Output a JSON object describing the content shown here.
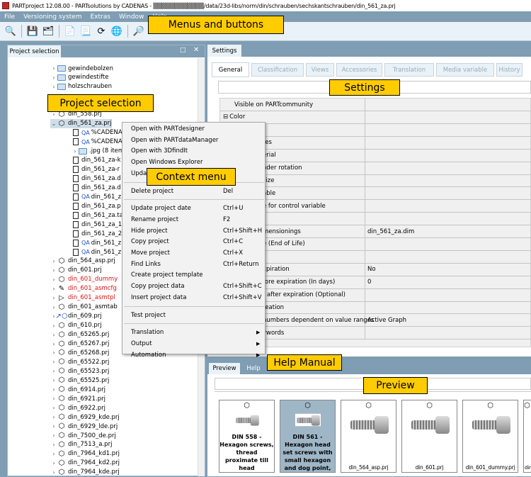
{
  "title": "PARTproject 12.08.00 - PARTsolutions by CADENAS - ▒▒▒▒▒▒▒▒▒▒▒▒/data/23d-libs/norm/din/schrauben/sechskantschrauben/din_561_za.prj",
  "menu": [
    "File",
    "Versioning system",
    "Extras",
    "Window",
    "Help"
  ],
  "toolbar_icons": [
    "search-text-icon",
    "save-icon",
    "save-all-icon",
    "export-icon",
    "export-alt-icon",
    "update-icon",
    "globe-icon",
    "search-red-icon"
  ],
  "callouts": {
    "menus": "Menus and buttons",
    "project": "Project selection",
    "settings": "Settings",
    "context": "Context menu",
    "help": "Help Manual",
    "preview": "Preview"
  },
  "left_panel": {
    "tab": "Project selection"
  },
  "tree": [
    {
      "label": "gewindebolzen",
      "type": "folder",
      "indent": 1
    },
    {
      "label": "gewindestifte",
      "type": "folder",
      "indent": 1
    },
    {
      "label": "holzschrauben",
      "type": "folder",
      "indent": 1
    },
    {
      "label": "",
      "type": "none",
      "indent": 1
    },
    {
      "label": "",
      "type": "none",
      "indent": 1
    },
    {
      "label": "din_558.prj",
      "type": "prj",
      "indent": 1
    },
    {
      "label": "din_561_za.prj",
      "type": "prj",
      "indent": 1,
      "expanded": true,
      "selected": true
    },
    {
      "label": "%CADENA",
      "type": "qa",
      "indent": 2
    },
    {
      "label": "%CADENA",
      "type": "qa",
      "indent": 2
    },
    {
      "label": ".jpg (8 items)",
      "type": "folder",
      "indent": 2,
      "chev": true
    },
    {
      "label": "din_561_za-k",
      "type": "doc",
      "indent": 2
    },
    {
      "label": "din_561_za-r",
      "type": "doc",
      "indent": 2
    },
    {
      "label": "din_561_za.d",
      "type": "doc",
      "indent": 2
    },
    {
      "label": "din_561_za.d",
      "type": "doc",
      "indent": 2
    },
    {
      "label": "din_561_z",
      "type": "qa",
      "indent": 2
    },
    {
      "label": "din_561_za.p",
      "type": "doc",
      "indent": 2
    },
    {
      "label": "din_561_za.ta",
      "type": "doc",
      "indent": 2
    },
    {
      "label": "din_561_za_1",
      "type": "doc",
      "indent": 2
    },
    {
      "label": "din_561_za_2",
      "type": "doc",
      "indent": 2
    },
    {
      "label": "din_561_z",
      "type": "qa",
      "indent": 2
    },
    {
      "label": "din_561_z",
      "type": "qa",
      "indent": 2
    },
    {
      "label": "din_564_asp.prj",
      "type": "prj",
      "indent": 1
    },
    {
      "label": "din_601.prj",
      "type": "prj",
      "indent": 1
    },
    {
      "label": "din_601_dummy",
      "type": "prj",
      "indent": 1,
      "red": true
    },
    {
      "label": "din_601_asmcfg",
      "type": "edit",
      "indent": 1,
      "red": true
    },
    {
      "label": "din_601_asmtpl",
      "type": "tpl",
      "indent": 1,
      "red": true
    },
    {
      "label": "din_601_asmtab",
      "type": "tab",
      "indent": 1
    },
    {
      "label": "din_609.prj",
      "type": "link",
      "indent": 1
    },
    {
      "label": "din_610.prj",
      "type": "prj",
      "indent": 1
    },
    {
      "label": "din_65265.prj",
      "type": "prj",
      "indent": 1
    },
    {
      "label": "din_65267.prj",
      "type": "prj",
      "indent": 1
    },
    {
      "label": "din_65268.prj",
      "type": "prj",
      "indent": 1
    },
    {
      "label": "din_65522.prj",
      "type": "prj",
      "indent": 1
    },
    {
      "label": "din_65523.prj",
      "type": "prj",
      "indent": 1
    },
    {
      "label": "din_65525.prj",
      "type": "prj",
      "indent": 1
    },
    {
      "label": "din_6914.prj",
      "type": "prj",
      "indent": 1
    },
    {
      "label": "din_6921.prj",
      "type": "prj",
      "indent": 1
    },
    {
      "label": "din_6922.prj",
      "type": "prj",
      "indent": 1
    },
    {
      "label": "din_6929_kde.prj",
      "type": "prj",
      "indent": 1
    },
    {
      "label": "din_6929_lde.prj",
      "type": "prj",
      "indent": 1
    },
    {
      "label": "din_7500_de.prj",
      "type": "prj",
      "indent": 1
    },
    {
      "label": "din_7513_a.prj",
      "type": "prj",
      "indent": 1
    },
    {
      "label": "din_7964_kd1.prj",
      "type": "prj",
      "indent": 1
    },
    {
      "label": "din_7964_kd2.prj",
      "type": "prj",
      "indent": 1
    },
    {
      "label": "din_7964_kde.prj",
      "type": "prj",
      "indent": 1
    }
  ],
  "settings_panel": {
    "tab": "Settings",
    "subtabs": [
      "General",
      "Classification",
      "Views",
      "Accessories",
      "Translation",
      "Media variable",
      "History"
    ],
    "active_subtab": "General"
  },
  "settings_rows": [
    {
      "label": "Visible on PARTcommunity",
      "value": "",
      "center": true
    },
    {
      "label": "Color",
      "value": "",
      "group": true
    },
    {
      "label": "",
      "value": ""
    },
    {
      "label": "tes",
      "value": ""
    },
    {
      "label": "erial",
      "value": ""
    },
    {
      "label": "nder rotation",
      "value": ""
    },
    {
      "label": "size",
      "value": ""
    },
    {
      "label": "able",
      "value": ""
    },
    {
      "label": "e for control variable",
      "value": ""
    },
    {
      "label": "",
      "value": ""
    },
    {
      "label": "mensionings",
      "value": "din_561_za.dim"
    },
    {
      "label": "e (End of Life)",
      "value": ""
    },
    {
      "label": "",
      "value": ""
    },
    {
      "label": "xpiration",
      "value": "No"
    },
    {
      "label": "fore expiration (In days)",
      "value": "0"
    },
    {
      "label": "t after expiration (Optional)",
      "value": ""
    },
    {
      "label": "reation",
      "value": ""
    },
    {
      "label": "numbers dependent on value ranges",
      "value": "Active Graph"
    },
    {
      "label": "ywords",
      "value": ""
    }
  ],
  "context_menu": [
    {
      "label": "Open with PARTdesigner",
      "shortcut": ""
    },
    {
      "label": "Open with PARTdataManager",
      "shortcut": ""
    },
    {
      "label": "Open with 3DfindIt",
      "shortcut": ""
    },
    {
      "label": "Open Windows Explorer",
      "shortcut": ""
    },
    {
      "label": "Upda",
      "shortcut": ""
    },
    {
      "sep": true
    },
    {
      "label": "Delete project",
      "shortcut": "Del"
    },
    {
      "sep": true
    },
    {
      "label": "Update project date",
      "shortcut": "Ctrl+U"
    },
    {
      "label": "Rename project",
      "shortcut": "F2"
    },
    {
      "label": "Hide project",
      "shortcut": "Ctrl+Shift+H"
    },
    {
      "label": "Copy project",
      "shortcut": "Ctrl+C"
    },
    {
      "label": "Move project",
      "shortcut": "Ctrl+X"
    },
    {
      "label": "Find Links",
      "shortcut": "Ctrl+Return"
    },
    {
      "label": "Create project template",
      "shortcut": ""
    },
    {
      "label": "Copy project data",
      "shortcut": "Ctrl+Shift+C"
    },
    {
      "label": "Insert project data",
      "shortcut": "Ctrl+Shift+V"
    },
    {
      "sep": true
    },
    {
      "label": "Test project",
      "shortcut": ""
    },
    {
      "sep": true
    },
    {
      "label": "Translation",
      "shortcut": "",
      "submenu": true
    },
    {
      "label": "Output",
      "shortcut": "",
      "submenu": true
    },
    {
      "label": "Automation",
      "shortcut": "",
      "submenu": true
    }
  ],
  "bottom_panel": {
    "tabs": [
      "Preview",
      "Help"
    ],
    "active": "Preview"
  },
  "preview_cards": [
    {
      "title": "DIN 558 - Hexagon screws, thread proximate till head",
      "name": ""
    },
    {
      "title": "DIN 561 - Hexagon head set screws with small hexagon and dog point,",
      "name": "",
      "selected": true
    },
    {
      "title": "",
      "name": "din_564_asp.prj"
    },
    {
      "title": "",
      "name": "din_601.prj"
    },
    {
      "title": "",
      "name": "din_601_dummy.prj"
    },
    {
      "title": "",
      "name": "din"
    }
  ]
}
